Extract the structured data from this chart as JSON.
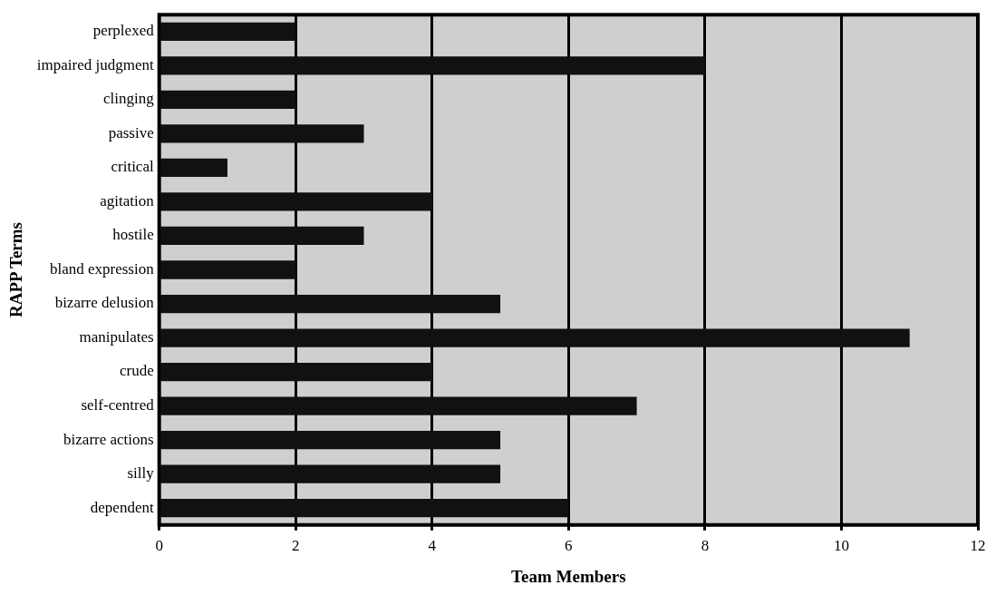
{
  "chart_data": {
    "type": "bar",
    "orientation": "horizontal",
    "xlabel": "Team Members",
    "ylabel": "RAPP Terms",
    "categories": [
      "perplexed",
      "impaired judgment",
      "clinging",
      "passive",
      "critical",
      "agitation",
      "hostile",
      "bland expression",
      "bizarre delusion",
      "manipulates",
      "crude",
      "self-centred",
      "bizarre actions",
      "silly",
      "dependent"
    ],
    "values": [
      2,
      8,
      2,
      3,
      1,
      4,
      3,
      2,
      5,
      11,
      4,
      7,
      5,
      5,
      6
    ],
    "color": "#111111",
    "xlim": [
      0,
      12
    ],
    "xticks": [
      0,
      2,
      4,
      6,
      8,
      10,
      12
    ],
    "grid": "x",
    "legend": false
  }
}
